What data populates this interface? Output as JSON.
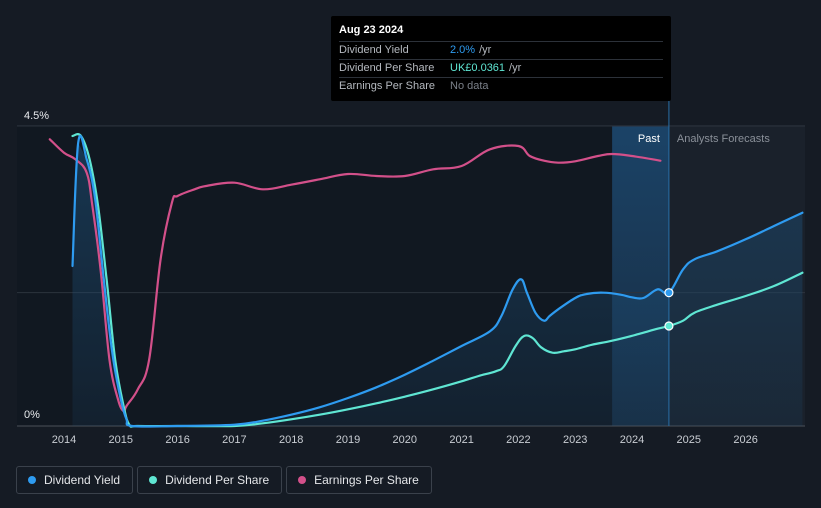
{
  "tooltip": {
    "date": "Aug 23 2024",
    "rows": [
      {
        "label": "Dividend Yield",
        "value": "2.0%",
        "unit": "/yr",
        "color": "#2e9bf0"
      },
      {
        "label": "Dividend Per Share",
        "value": "UK£0.0361",
        "unit": "/yr",
        "color": "#5fe6d3"
      },
      {
        "label": "Earnings Per Share",
        "value": "No data",
        "unit": "",
        "color": "#7b8089"
      }
    ]
  },
  "regions": {
    "past": "Past",
    "forecast": "Analysts Forecasts"
  },
  "legend": [
    {
      "label": "Dividend Yield",
      "color": "#2e9bf0"
    },
    {
      "label": "Dividend Per Share",
      "color": "#5fe6d3"
    },
    {
      "label": "Earnings Per Share",
      "color": "#d3508a"
    }
  ],
  "chart_data": {
    "type": "line",
    "y_tick_labels": [
      "4.5%",
      "0%"
    ],
    "ylim": [
      0,
      4.5
    ],
    "xlim": [
      2013.4,
      2027.0
    ],
    "x_ticks": [
      2014,
      2015,
      2016,
      2017,
      2018,
      2019,
      2020,
      2021,
      2022,
      2023,
      2024,
      2025,
      2026
    ],
    "today": 2024.65,
    "forecast_band_start": 2023.65,
    "series": [
      {
        "name": "Dividend Yield",
        "color": "#2e9bf0",
        "x": [
          2014.15,
          2014.25,
          2014.4,
          2014.55,
          2014.7,
          2014.85,
          2015.0,
          2015.1,
          2015.2,
          2016.0,
          2017.0,
          2017.5,
          2018.0,
          2018.5,
          2019.0,
          2019.5,
          2020.0,
          2020.5,
          2021.0,
          2021.5,
          2021.7,
          2021.9,
          2022.05,
          2022.15,
          2022.3,
          2022.45,
          2022.55,
          2022.7,
          2023.0,
          2023.2,
          2023.5,
          2023.8,
          2024.0,
          2024.2,
          2024.45,
          2024.65,
          2024.9,
          2025.1,
          2025.5,
          2026.0,
          2026.5,
          2027.0
        ],
        "y": [
          2.4,
          4.25,
          4.0,
          3.4,
          2.2,
          1.1,
          0.4,
          0.1,
          0.0,
          0.0,
          0.02,
          0.08,
          0.17,
          0.28,
          0.42,
          0.58,
          0.77,
          0.98,
          1.2,
          1.42,
          1.65,
          2.05,
          2.2,
          2.0,
          1.7,
          1.58,
          1.65,
          1.75,
          1.92,
          1.98,
          2.0,
          1.97,
          1.93,
          1.92,
          2.05,
          2.0,
          2.35,
          2.5,
          2.62,
          2.8,
          3.0,
          3.2
        ]
      },
      {
        "name": "Dividend Per Share",
        "color": "#5fe6d3",
        "x": [
          2014.15,
          2014.3,
          2014.45,
          2014.6,
          2014.75,
          2014.9,
          2015.05,
          2015.15,
          2015.3,
          2016.0,
          2017.0,
          2017.5,
          2018.0,
          2018.5,
          2019.0,
          2019.5,
          2020.0,
          2020.5,
          2021.0,
          2021.3,
          2021.6,
          2021.75,
          2021.95,
          2022.1,
          2022.25,
          2022.4,
          2022.6,
          2022.8,
          2023.0,
          2023.3,
          2023.6,
          2023.9,
          2024.2,
          2024.45,
          2024.65,
          2024.9,
          2025.1,
          2025.5,
          2026.0,
          2026.5,
          2027.0
        ],
        "y": [
          4.35,
          4.35,
          4.0,
          3.3,
          2.2,
          1.0,
          0.3,
          0.02,
          0.0,
          0.0,
          0.0,
          0.04,
          0.1,
          0.17,
          0.25,
          0.34,
          0.44,
          0.55,
          0.67,
          0.75,
          0.82,
          0.9,
          1.2,
          1.35,
          1.32,
          1.18,
          1.1,
          1.12,
          1.15,
          1.22,
          1.27,
          1.33,
          1.4,
          1.46,
          1.5,
          1.58,
          1.7,
          1.82,
          1.95,
          2.1,
          2.3
        ]
      },
      {
        "name": "Earnings Per Share",
        "color": "#d3508a",
        "x": [
          2013.75,
          2014.0,
          2014.2,
          2014.4,
          2014.5,
          2014.65,
          2014.8,
          2014.95,
          2015.05,
          2015.1,
          2015.3,
          2015.5,
          2015.7,
          2015.9,
          2016.0,
          2016.3,
          2016.5,
          2017.0,
          2017.5,
          2018.0,
          2018.5,
          2019.0,
          2019.5,
          2020.0,
          2020.5,
          2021.0,
          2021.5,
          2022.0,
          2022.2,
          2022.45,
          2022.7,
          2023.0,
          2023.4,
          2023.65,
          2024.0,
          2024.5
        ],
        "y": [
          4.3,
          4.1,
          4.0,
          3.8,
          3.3,
          2.3,
          1.0,
          0.4,
          0.22,
          0.3,
          0.55,
          1.0,
          2.5,
          3.35,
          3.45,
          3.55,
          3.6,
          3.65,
          3.55,
          3.62,
          3.7,
          3.78,
          3.75,
          3.75,
          3.85,
          3.9,
          4.15,
          4.2,
          4.05,
          3.98,
          3.95,
          3.97,
          4.05,
          4.08,
          4.05,
          3.98
        ]
      }
    ]
  }
}
